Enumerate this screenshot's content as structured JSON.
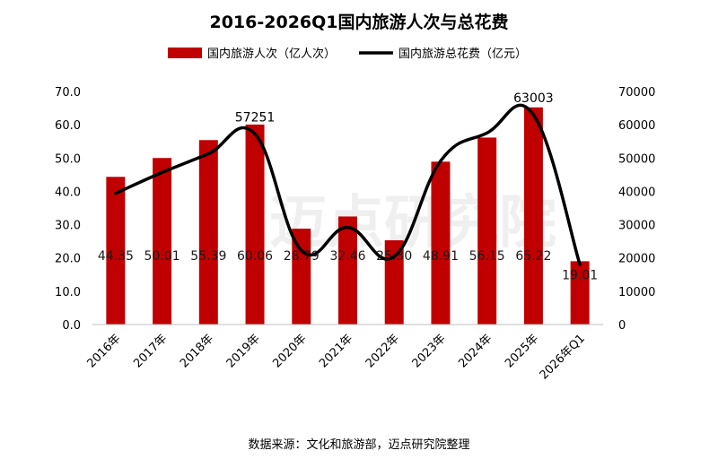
{
  "chart_data": {
    "type": "bar+line",
    "title": "2016-2026Q1国内旅游人次与总花费",
    "categories": [
      "2016年",
      "2017年",
      "2018年",
      "2019年",
      "2020年",
      "2021年",
      "2022年",
      "2023年",
      "2024年",
      "2025年",
      "2026年Q1"
    ],
    "bar_series": {
      "name": "国内旅游人次（亿人次）",
      "color": "#c00000",
      "values": [
        44.35,
        50.01,
        55.39,
        60.06,
        28.79,
        32.46,
        25.3,
        48.91,
        56.15,
        65.22,
        19.01
      ],
      "labels": [
        "44.35",
        "50.01",
        "55.39",
        "60.06",
        "28.79",
        "32.46",
        "25.30",
        "48.91",
        "56.15",
        "65.22",
        "19.01"
      ]
    },
    "line_series": {
      "name": "国内旅游总花费（亿元）",
      "color": "#000000",
      "values": [
        39390,
        45661,
        51278,
        57251,
        22286,
        29191,
        20444,
        49133,
        57543,
        63003,
        18000
      ],
      "peak_labels": [
        {
          "index": 3,
          "text": "57251"
        },
        {
          "index": 9,
          "text": "63003"
        }
      ]
    },
    "y_left": {
      "min": 0,
      "max": 70,
      "step": 10,
      "tick_labels": [
        "0.0",
        "10.0",
        "20.0",
        "30.0",
        "40.0",
        "50.0",
        "60.0",
        "70.0"
      ]
    },
    "y_right": {
      "min": 0,
      "max": 70000,
      "step": 10000,
      "tick_labels": [
        "0",
        "10000",
        "20000",
        "30000",
        "40000",
        "50000",
        "60000",
        "70000"
      ]
    },
    "legend_position": "top-center",
    "grid": false
  },
  "source_note": "数据来源：文化和旅游部，迈点研究院整理",
  "watermark": "迈点研究院"
}
